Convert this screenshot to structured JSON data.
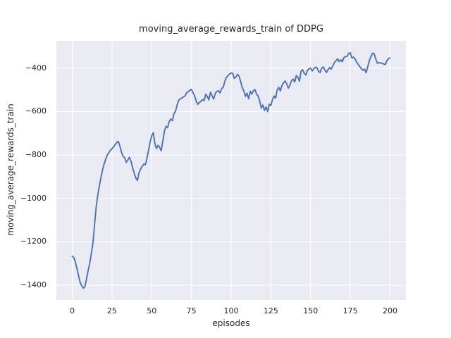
{
  "colors": {
    "line": "#4C72B0",
    "plot_background": "#EAEAF2",
    "grid": "#FFFFFF",
    "figure_background": "#FFFFFF",
    "text": "#262626"
  },
  "chart_data": {
    "type": "line",
    "title": "moving_average_rewards_train of DDPG",
    "xlabel": "episodes",
    "ylabel": "moving_average_rewards_train",
    "style": "seaborn-darkgrid",
    "grid": true,
    "legend": "none",
    "xlim": [
      -10,
      210
    ],
    "ylim": [
      -1468,
      -274
    ],
    "x_ticks": [
      0,
      25,
      50,
      75,
      100,
      125,
      150,
      175,
      200
    ],
    "x_tick_labels": [
      "0",
      "25",
      "50",
      "75",
      "100",
      "125",
      "150",
      "175",
      "200"
    ],
    "y_ticks": [
      -400,
      -600,
      -800,
      -1000,
      -1200,
      -1400
    ],
    "y_tick_labels": [
      "−400",
      "−600",
      "−800",
      "−1000",
      "−1200",
      "−1400"
    ],
    "series": [
      {
        "name": "moving_average_rewards_train",
        "x_start": 0,
        "x_step": 1,
        "values": [
          -1266,
          -1273,
          -1295,
          -1325,
          -1357,
          -1388,
          -1403,
          -1414,
          -1405,
          -1370,
          -1332,
          -1300,
          -1255,
          -1205,
          -1125,
          -1042,
          -988,
          -945,
          -906,
          -870,
          -843,
          -820,
          -801,
          -790,
          -778,
          -771,
          -763,
          -752,
          -742,
          -737,
          -760,
          -788,
          -806,
          -812,
          -834,
          -822,
          -810,
          -830,
          -858,
          -884,
          -906,
          -917,
          -882,
          -865,
          -853,
          -842,
          -845,
          -815,
          -778,
          -741,
          -712,
          -697,
          -748,
          -770,
          -755,
          -765,
          -780,
          -735,
          -690,
          -668,
          -674,
          -646,
          -634,
          -642,
          -610,
          -598,
          -570,
          -548,
          -540,
          -538,
          -532,
          -528,
          -513,
          -508,
          -502,
          -498,
          -513,
          -526,
          -552,
          -567,
          -558,
          -552,
          -545,
          -549,
          -520,
          -531,
          -546,
          -511,
          -527,
          -542,
          -516,
          -507,
          -504,
          -514,
          -494,
          -488,
          -462,
          -443,
          -434,
          -427,
          -422,
          -424,
          -447,
          -440,
          -428,
          -437,
          -462,
          -490,
          -505,
          -530,
          -515,
          -541,
          -506,
          -520,
          -503,
          -499,
          -520,
          -528,
          -552,
          -584,
          -570,
          -595,
          -578,
          -600,
          -566,
          -572,
          -545,
          -528,
          -538,
          -500,
          -488,
          -505,
          -480,
          -467,
          -459,
          -473,
          -492,
          -478,
          -458,
          -450,
          -464,
          -434,
          -442,
          -460,
          -414,
          -407,
          -424,
          -431,
          -411,
          -403,
          -400,
          -413,
          -403,
          -396,
          -398,
          -414,
          -420,
          -400,
          -394,
          -408,
          -420,
          -407,
          -397,
          -404,
          -389,
          -374,
          -366,
          -357,
          -370,
          -361,
          -370,
          -351,
          -347,
          -345,
          -332,
          -329,
          -353,
          -349,
          -358,
          -372,
          -383,
          -393,
          -402,
          -410,
          -404,
          -421,
          -393,
          -365,
          -347,
          -331,
          -333,
          -357,
          -377,
          -375,
          -376,
          -378,
          -380,
          -384,
          -366,
          -356,
          -353
        ]
      }
    ]
  }
}
